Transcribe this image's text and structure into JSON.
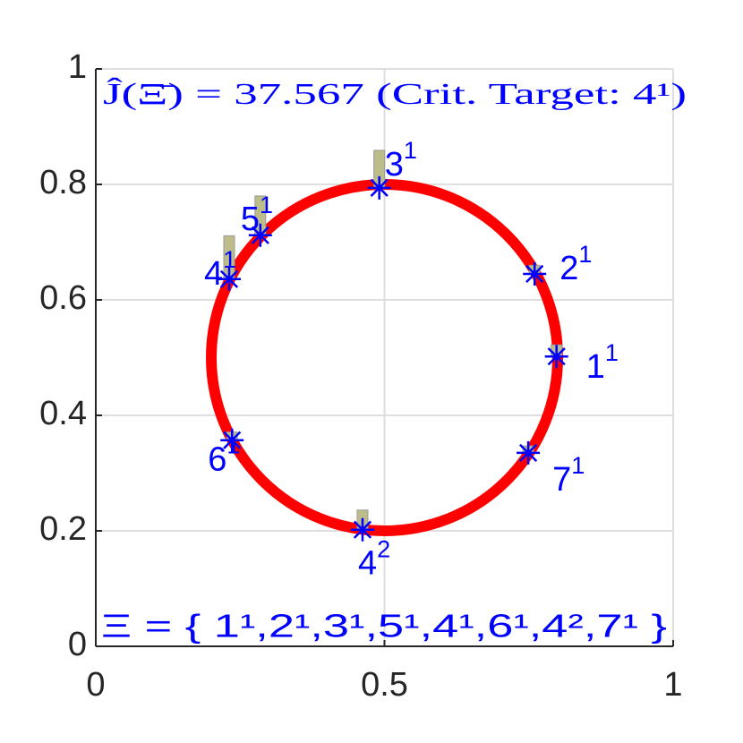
{
  "chart_data": {
    "type": "scatter",
    "title": "Ĵ(Ξ̄) = 37.567 (Crit. Target: 4¹)",
    "annotation": "Ξ = { 1¹,2¹,3¹,5¹,4¹,6¹,4²,7¹ }",
    "xlim": [
      0,
      1
    ],
    "ylim": [
      0,
      1
    ],
    "xticks": [
      0,
      0.5,
      1
    ],
    "yticks": [
      0,
      0.2,
      0.4,
      0.6,
      0.8,
      1
    ],
    "grid": true,
    "marker_color": "#0000ff",
    "bar_color": "#bdbd8a",
    "circle": {
      "center": [
        0.5,
        0.5
      ],
      "radius": 0.3,
      "color": "#ff0000"
    },
    "points": [
      {
        "label": "1",
        "sup": "1",
        "x": 0.798,
        "y": 0.502,
        "bar": 0.02
      },
      {
        "label": "2",
        "sup": "1",
        "x": 0.76,
        "y": 0.645,
        "bar": 0.015
      },
      {
        "label": "3",
        "sup": "1",
        "x": 0.491,
        "y": 0.794,
        "bar": 0.065
      },
      {
        "label": "5",
        "sup": "1",
        "x": 0.285,
        "y": 0.712,
        "bar": 0.068
      },
      {
        "label": "4",
        "sup": "1",
        "x": 0.231,
        "y": 0.636,
        "bar": 0.075
      },
      {
        "label": "6",
        "sup": "1",
        "x": 0.236,
        "y": 0.357,
        "bar": 0.014
      },
      {
        "label": "4",
        "sup": "2",
        "x": 0.462,
        "y": 0.202,
        "bar": 0.034
      },
      {
        "label": "7",
        "sup": "1",
        "x": 0.749,
        "y": 0.335,
        "bar": 0.012
      }
    ]
  }
}
